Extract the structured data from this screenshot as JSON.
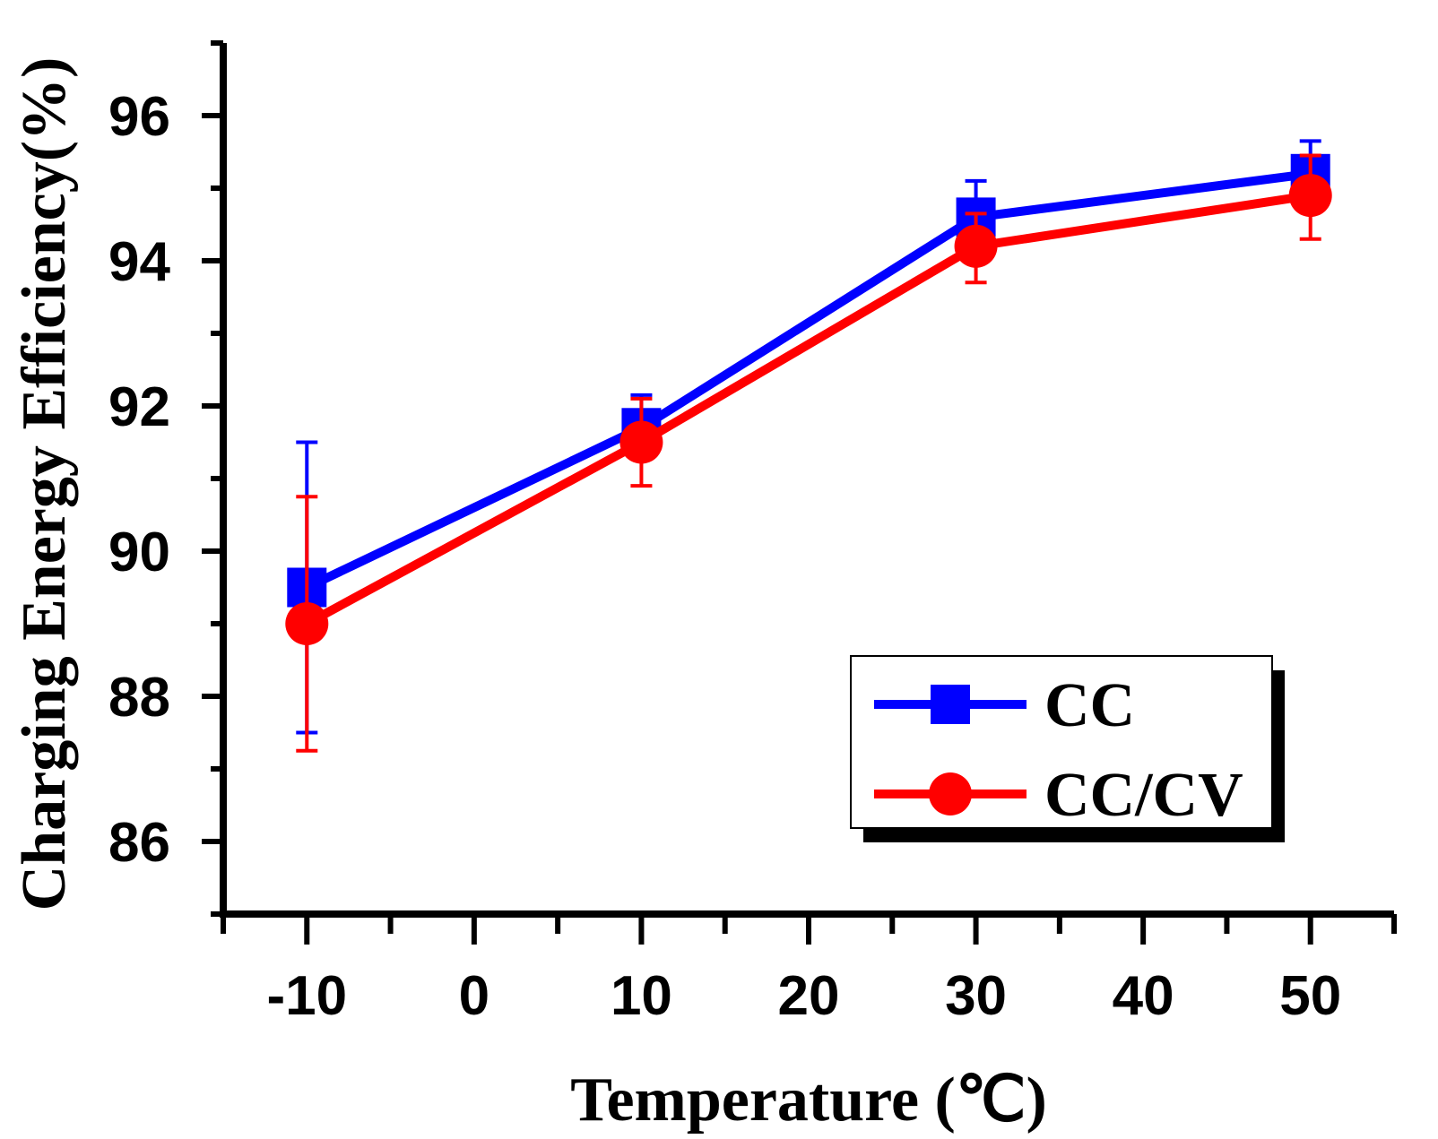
{
  "chart_data": {
    "type": "line",
    "title": "",
    "xlabel": "Temperature (℃)",
    "ylabel": "Charging Energy Efficiency(%)",
    "xlim": [
      -15,
      55
    ],
    "ylim": [
      85,
      97
    ],
    "xticks": [
      -10,
      0,
      10,
      20,
      30,
      40,
      50
    ],
    "xtick_labels": [
      "-10",
      "0",
      "10",
      "20",
      "30",
      "40",
      "50"
    ],
    "yticks": [
      86,
      88,
      90,
      92,
      94,
      96
    ],
    "ytick_labels": [
      "86",
      "88",
      "90",
      "92",
      "94",
      "96"
    ],
    "grid": false,
    "legend_position": "bottom-right",
    "series": [
      {
        "name": "CC",
        "color": "#0000ff",
        "marker": "square",
        "x": [
          -10,
          10,
          30,
          50
        ],
        "y": [
          89.5,
          91.7,
          94.6,
          95.2
        ],
        "err_upper": [
          91.5,
          92.15,
          95.1,
          95.65
        ],
        "err_lower": [
          87.5,
          91.7,
          94.6,
          95.2
        ]
      },
      {
        "name": "CC/CV",
        "color": "#ff0000",
        "marker": "circle",
        "x": [
          -10,
          10,
          30,
          50
        ],
        "y": [
          89.0,
          91.5,
          94.2,
          94.9
        ],
        "err_upper": [
          90.75,
          92.1,
          94.65,
          95.45
        ],
        "err_lower": [
          87.25,
          90.9,
          93.7,
          94.3
        ]
      }
    ]
  }
}
